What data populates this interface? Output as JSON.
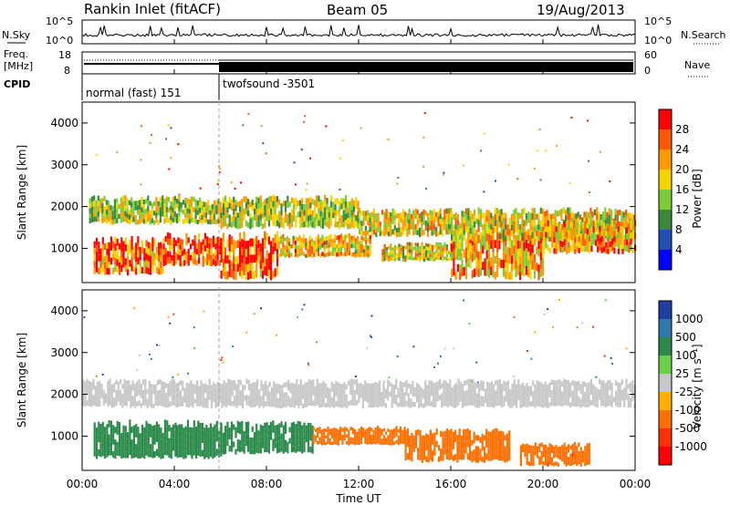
{
  "header": {
    "title": "Rankin Inlet (fitACF)",
    "beam": "Beam 05",
    "date": "19/Aug/2013"
  },
  "strip_labels": {
    "nsky": "N.Sky",
    "nsearch": "N.Search",
    "freq_line1": "Freq.",
    "freq_line2": "[MHz]",
    "nave": "Nave",
    "cpid": "CPID",
    "cpid_mode1": "normal (fast) 151",
    "cpid_mode2": "twofsound -3501",
    "nsky_ticks": [
      "10^5",
      "10^0"
    ],
    "nsearch_ticks": [
      "10^5",
      "10^0"
    ],
    "freq_ticks": [
      "18",
      "8"
    ],
    "nave_ticks": [
      "60",
      "0"
    ]
  },
  "panels": {
    "power": {
      "ylabel": "Slant Range [km]",
      "cbar_label": "Power [dB]",
      "cbar_ticks": [
        "28",
        "24",
        "20",
        "16",
        "12",
        "8",
        "4"
      ],
      "cbar_colors": [
        "#ff0000",
        "#ff5a00",
        "#ff9a00",
        "#f5d400",
        "#7ccc3a",
        "#3a8a3a",
        "#1f4fb0",
        "#0000ff"
      ]
    },
    "velocity": {
      "ylabel": "Slant Range [km]",
      "cbar_label": "Velocity [m s⁻¹]",
      "cbar_ticks": [
        "1000",
        "500",
        "100",
        "25",
        "-25",
        "-100",
        "-500",
        "-1000"
      ],
      "cbar_colors": [
        "#1f3fa0",
        "#2f7aa8",
        "#2a8a4a",
        "#6ad04a",
        "#c8c8c8",
        "#ffb000",
        "#ff7000",
        "#ff3000",
        "#ff0000"
      ]
    }
  },
  "xaxis": {
    "label": "Time UT",
    "ticks": [
      "00:00",
      "04:00",
      "08:00",
      "12:00",
      "16:00",
      "20:00",
      "00:00"
    ]
  },
  "chart_data": [
    {
      "type": "heatmap",
      "title": "Power",
      "xlabel": "Time UT",
      "ylabel": "Slant Range [km]",
      "xlim": [
        "00:00",
        "24:00"
      ],
      "ylim": [
        180,
        4500
      ],
      "yticks": [
        1000,
        2000,
        3000,
        4000
      ],
      "colorbar": {
        "label": "Power [dB]",
        "ticks": [
          4,
          8,
          12,
          16,
          20,
          24,
          28
        ],
        "range": [
          0,
          30
        ]
      },
      "bands": [
        {
          "t0": 0.3,
          "t1": 6.0,
          "r0": 1600,
          "r1": 2200,
          "level": 16
        },
        {
          "t0": 0.5,
          "t1": 3.5,
          "r0": 400,
          "r1": 1200,
          "level": 26
        },
        {
          "t0": 3.5,
          "t1": 6.0,
          "r0": 600,
          "r1": 1300,
          "level": 28
        },
        {
          "t0": 6.0,
          "t1": 8.5,
          "r0": 300,
          "r1": 1300,
          "level": 26
        },
        {
          "t0": 6.0,
          "t1": 12.0,
          "r0": 1500,
          "r1": 2200,
          "level": 16
        },
        {
          "t0": 8.5,
          "t1": 12.5,
          "r0": 800,
          "r1": 1300,
          "level": 20
        },
        {
          "t0": 12.0,
          "t1": 16.0,
          "r0": 1300,
          "r1": 1900,
          "level": 18
        },
        {
          "t0": 13.0,
          "t1": 16.5,
          "r0": 700,
          "r1": 1100,
          "level": 18
        },
        {
          "t0": 16.0,
          "t1": 20.0,
          "r0": 300,
          "r1": 1300,
          "level": 22
        },
        {
          "t0": 16.0,
          "t1": 24.0,
          "r0": 1200,
          "r1": 1900,
          "level": 18
        },
        {
          "t0": 20.0,
          "t1": 24.0,
          "r0": 900,
          "r1": 1600,
          "level": 22
        }
      ]
    },
    {
      "type": "heatmap",
      "title": "Velocity",
      "xlabel": "Time UT",
      "ylabel": "Slant Range [km]",
      "xlim": [
        "00:00",
        "24:00"
      ],
      "ylim": [
        180,
        4500
      ],
      "yticks": [
        1000,
        2000,
        3000,
        4000
      ],
      "colorbar": {
        "label": "Velocity [m s⁻¹]",
        "ticks": [
          -1000,
          -500,
          -100,
          -25,
          25,
          100,
          500,
          1000
        ],
        "range": [
          -1200,
          1200
        ]
      },
      "bands": [
        {
          "t0": 0.0,
          "t1": 24.0,
          "r0": 1700,
          "r1": 2300,
          "level": 0
        },
        {
          "t0": 0.5,
          "t1": 6.0,
          "r0": 500,
          "r1": 1300,
          "level": 300
        },
        {
          "t0": 6.0,
          "t1": 10.0,
          "r0": 600,
          "r1": 1300,
          "level": 150
        },
        {
          "t0": 10.0,
          "t1": 14.0,
          "r0": 800,
          "r1": 1200,
          "level": -200
        },
        {
          "t0": 14.0,
          "t1": 18.5,
          "r0": 400,
          "r1": 1100,
          "level": -300
        },
        {
          "t0": 19.0,
          "t1": 22.0,
          "r0": 300,
          "r1": 800,
          "level": -400
        }
      ]
    }
  ]
}
